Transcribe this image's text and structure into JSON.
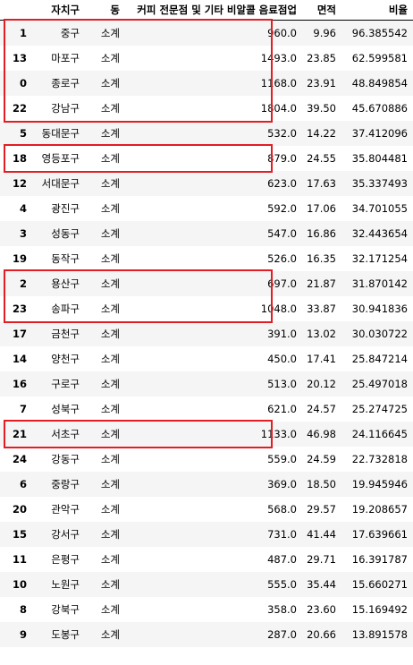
{
  "table": {
    "columns": [
      "",
      "자치구",
      "동",
      "커피 전문점 및 기타 비알콜 음료점업",
      "면적",
      "비율"
    ],
    "rows": [
      [
        "1",
        "중구",
        "소계",
        "960.0",
        "9.96",
        "96.385542"
      ],
      [
        "13",
        "마포구",
        "소계",
        "1493.0",
        "23.85",
        "62.599581"
      ],
      [
        "0",
        "종로구",
        "소계",
        "1168.0",
        "23.91",
        "48.849854"
      ],
      [
        "22",
        "강남구",
        "소계",
        "1804.0",
        "39.50",
        "45.670886"
      ],
      [
        "5",
        "동대문구",
        "소계",
        "532.0",
        "14.22",
        "37.412096"
      ],
      [
        "18",
        "영등포구",
        "소계",
        "879.0",
        "24.55",
        "35.804481"
      ],
      [
        "12",
        "서대문구",
        "소계",
        "623.0",
        "17.63",
        "35.337493"
      ],
      [
        "4",
        "광진구",
        "소계",
        "592.0",
        "17.06",
        "34.701055"
      ],
      [
        "3",
        "성동구",
        "소계",
        "547.0",
        "16.86",
        "32.443654"
      ],
      [
        "19",
        "동작구",
        "소계",
        "526.0",
        "16.35",
        "32.171254"
      ],
      [
        "2",
        "용산구",
        "소계",
        "697.0",
        "21.87",
        "31.870142"
      ],
      [
        "23",
        "송파구",
        "소계",
        "1048.0",
        "33.87",
        "30.941836"
      ],
      [
        "17",
        "금천구",
        "소계",
        "391.0",
        "13.02",
        "30.030722"
      ],
      [
        "14",
        "양천구",
        "소계",
        "450.0",
        "17.41",
        "25.847214"
      ],
      [
        "16",
        "구로구",
        "소계",
        "513.0",
        "20.12",
        "25.497018"
      ],
      [
        "7",
        "성북구",
        "소계",
        "621.0",
        "24.57",
        "25.274725"
      ],
      [
        "21",
        "서초구",
        "소계",
        "1133.0",
        "46.98",
        "24.116645"
      ],
      [
        "24",
        "강동구",
        "소계",
        "559.0",
        "24.59",
        "22.732818"
      ],
      [
        "6",
        "중랑구",
        "소계",
        "369.0",
        "18.50",
        "19.945946"
      ],
      [
        "20",
        "관악구",
        "소계",
        "568.0",
        "29.57",
        "19.208657"
      ],
      [
        "15",
        "강서구",
        "소계",
        "731.0",
        "41.44",
        "17.639661"
      ],
      [
        "11",
        "은평구",
        "소계",
        "487.0",
        "29.71",
        "16.391787"
      ],
      [
        "10",
        "노원구",
        "소계",
        "555.0",
        "35.44",
        "15.660271"
      ],
      [
        "8",
        "강북구",
        "소계",
        "358.0",
        "23.60",
        "15.169492"
      ],
      [
        "9",
        "도봉구",
        "소계",
        "287.0",
        "20.66",
        "13.891578"
      ]
    ]
  },
  "highlight_groups": [
    {
      "first_row": 0,
      "last_row": 3
    },
    {
      "first_row": 5,
      "last_row": 5
    },
    {
      "first_row": 10,
      "last_row": 11
    },
    {
      "first_row": 16,
      "last_row": 16
    }
  ],
  "colors": {
    "highlight": "#e01e24",
    "row_stripe": "#f5f5f5"
  }
}
